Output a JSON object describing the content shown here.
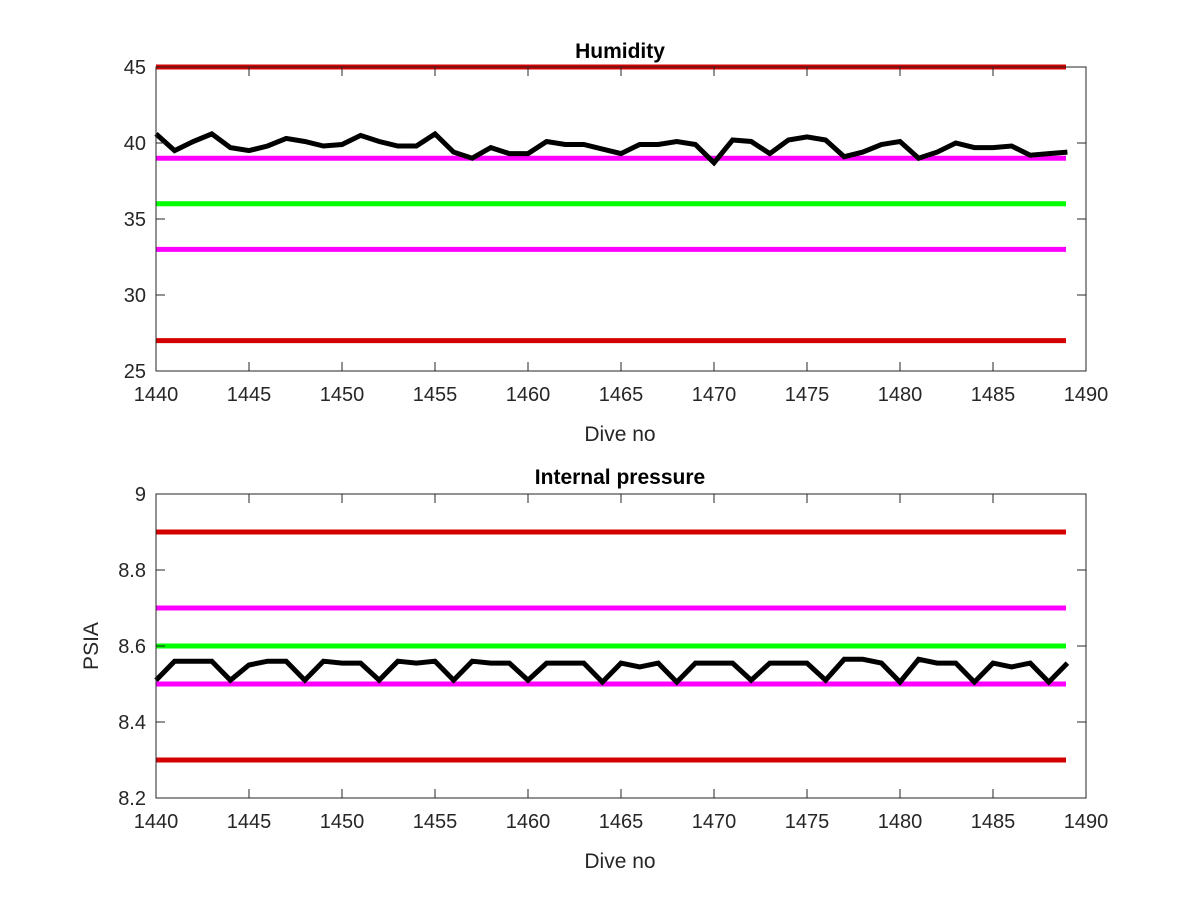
{
  "chart_data": [
    {
      "type": "line",
      "title": "Humidity",
      "xlabel": "Dive no",
      "ylabel": "",
      "xlim": [
        1440,
        1490
      ],
      "ylim": [
        25,
        45
      ],
      "xticks": [
        "1440",
        "1445",
        "1450",
        "1455",
        "1460",
        "1465",
        "1470",
        "1475",
        "1480",
        "1485",
        "1490"
      ],
      "yticks": [
        "25",
        "30",
        "35",
        "40",
        "45"
      ],
      "grid": false,
      "x": [
        1440,
        1441,
        1442,
        1443,
        1444,
        1445,
        1446,
        1447,
        1448,
        1449,
        1450,
        1451,
        1452,
        1453,
        1454,
        1455,
        1456,
        1457,
        1458,
        1459,
        1460,
        1461,
        1462,
        1463,
        1464,
        1465,
        1466,
        1467,
        1468,
        1469,
        1470,
        1471,
        1472,
        1473,
        1474,
        1475,
        1476,
        1477,
        1478,
        1479,
        1480,
        1481,
        1482,
        1483,
        1484,
        1485,
        1486,
        1487,
        1488,
        1489
      ],
      "series": [
        {
          "values": [
            40.6,
            39.5,
            40.1,
            40.6,
            39.7,
            39.5,
            39.8,
            40.3,
            40.1,
            39.8,
            39.9,
            40.5,
            40.1,
            39.8,
            39.8,
            40.6,
            39.4,
            39.0,
            39.7,
            39.3,
            39.3,
            40.1,
            39.9,
            39.9,
            39.6,
            39.3,
            39.9,
            39.9,
            40.1,
            39.9,
            38.7,
            40.2,
            40.1,
            39.3,
            40.2,
            40.4,
            40.2,
            39.1,
            39.4,
            39.9,
            40.1,
            39.0,
            39.4,
            40.0,
            39.7,
            39.7,
            39.8,
            39.2,
            39.3,
            39.4
          ],
          "color": "#000000"
        }
      ],
      "hlines": [
        {
          "value": 45,
          "color": "#d40000"
        },
        {
          "value": 39,
          "color": "#ff00ff"
        },
        {
          "value": 36,
          "color": "#00ff00"
        },
        {
          "value": 33,
          "color": "#ff00ff"
        },
        {
          "value": 27,
          "color": "#d40000"
        }
      ]
    },
    {
      "type": "line",
      "title": "Internal pressure",
      "xlabel": "Dive no",
      "ylabel": "PSIA",
      "xlim": [
        1440,
        1490
      ],
      "ylim": [
        8.2,
        9
      ],
      "xticks": [
        "1440",
        "1445",
        "1450",
        "1455",
        "1460",
        "1465",
        "1470",
        "1475",
        "1480",
        "1485",
        "1490"
      ],
      "yticks": [
        "8.2",
        "8.4",
        "8.6",
        "8.8",
        "9"
      ],
      "grid": false,
      "x": [
        1440,
        1441,
        1442,
        1443,
        1444,
        1445,
        1446,
        1447,
        1448,
        1449,
        1450,
        1451,
        1452,
        1453,
        1454,
        1455,
        1456,
        1457,
        1458,
        1459,
        1460,
        1461,
        1462,
        1463,
        1464,
        1465,
        1466,
        1467,
        1468,
        1469,
        1470,
        1471,
        1472,
        1473,
        1474,
        1475,
        1476,
        1477,
        1478,
        1479,
        1480,
        1481,
        1482,
        1483,
        1484,
        1485,
        1486,
        1487,
        1488,
        1489
      ],
      "series": [
        {
          "values": [
            8.51,
            8.56,
            8.56,
            8.56,
            8.51,
            8.55,
            8.56,
            8.56,
            8.51,
            8.56,
            8.555,
            8.555,
            8.51,
            8.56,
            8.555,
            8.56,
            8.51,
            8.56,
            8.555,
            8.555,
            8.51,
            8.555,
            8.555,
            8.555,
            8.505,
            8.555,
            8.545,
            8.555,
            8.505,
            8.555,
            8.555,
            8.555,
            8.51,
            8.555,
            8.555,
            8.555,
            8.51,
            8.565,
            8.565,
            8.555,
            8.505,
            8.565,
            8.555,
            8.555,
            8.505,
            8.555,
            8.545,
            8.555,
            8.505,
            8.555
          ],
          "color": "#000000"
        }
      ],
      "hlines": [
        {
          "value": 8.9,
          "color": "#d40000"
        },
        {
          "value": 8.7,
          "color": "#ff00ff"
        },
        {
          "value": 8.6,
          "color": "#00ff00"
        },
        {
          "value": 8.5,
          "color": "#ff00ff"
        },
        {
          "value": 8.3,
          "color": "#d40000"
        }
      ]
    }
  ]
}
